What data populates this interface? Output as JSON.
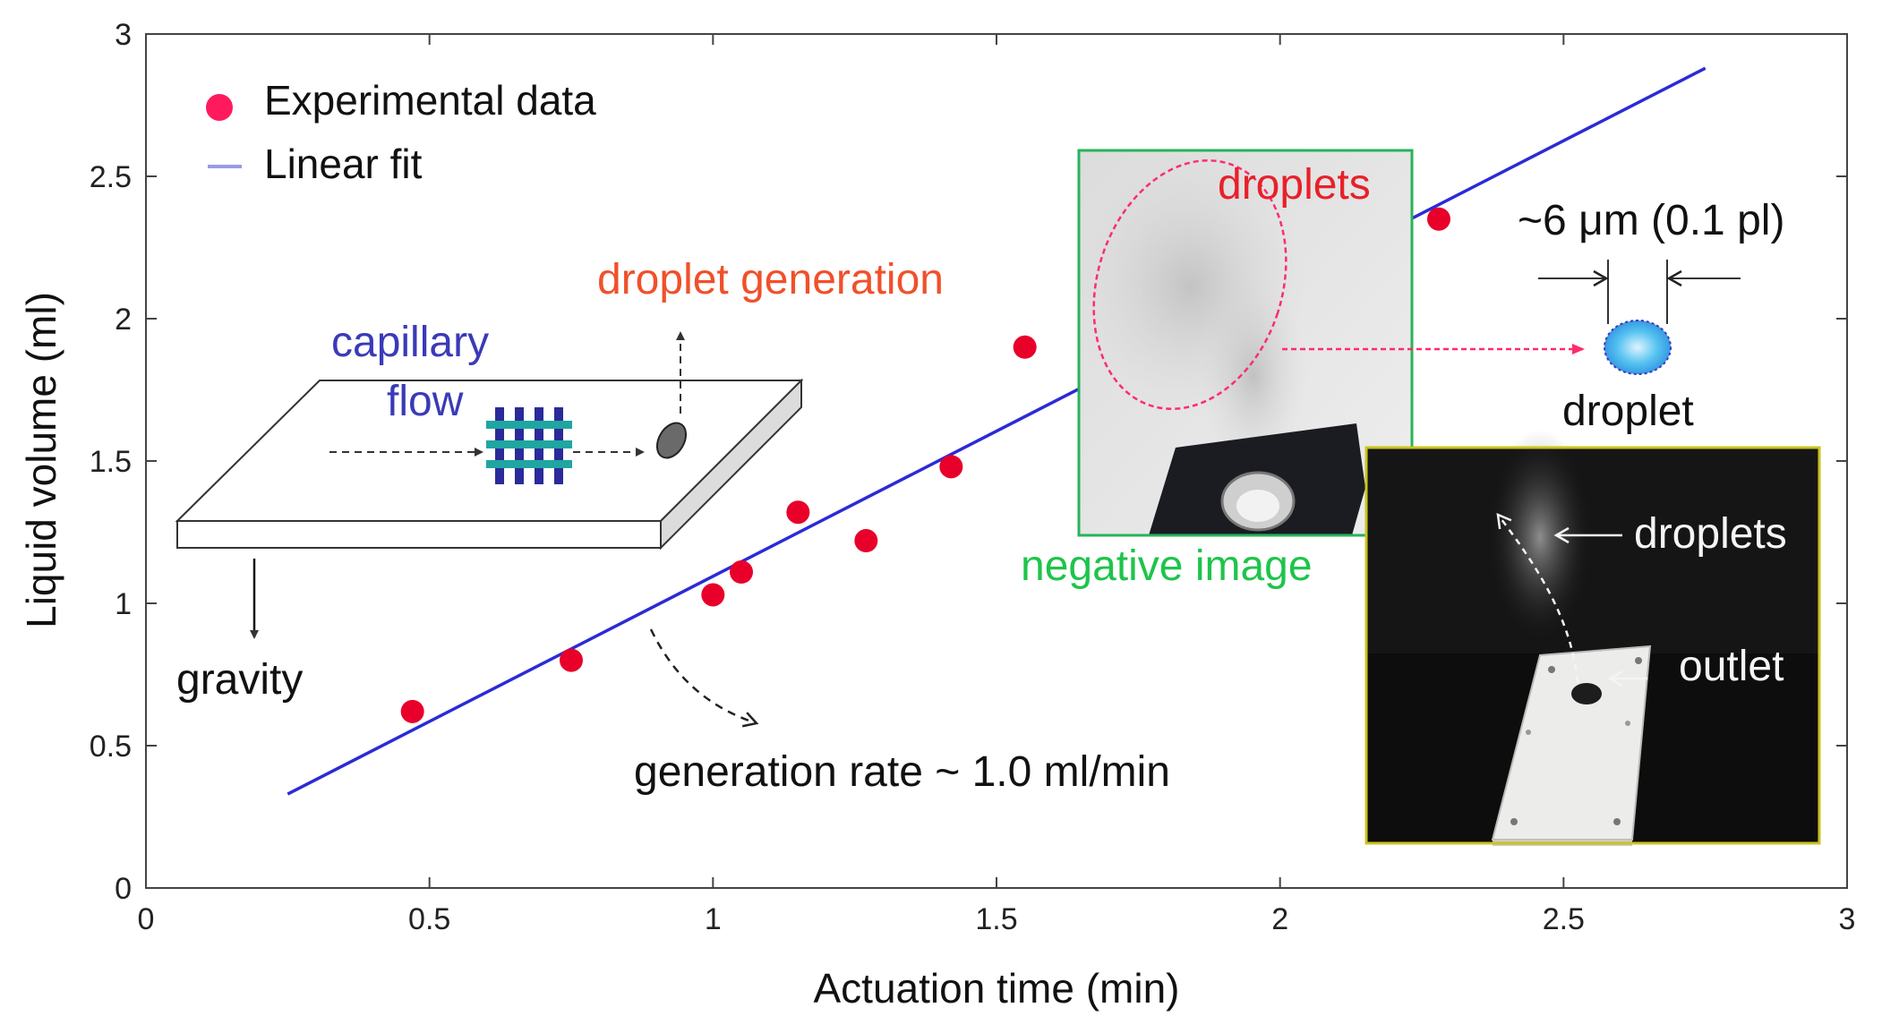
{
  "chart_data": {
    "type": "scatter",
    "title": "",
    "xlabel": "Actuation time (min)",
    "ylabel": "Liquid volume (ml)",
    "xlim": [
      0,
      3
    ],
    "ylim": [
      0,
      3
    ],
    "xticks": [
      "0",
      "0.5",
      "1",
      "1.5",
      "2",
      "2.5",
      "3"
    ],
    "yticks": [
      "0",
      "0.5",
      "1",
      "1.5",
      "2",
      "2.5",
      "3"
    ],
    "grid": false,
    "legend_position": "top-left",
    "series": [
      {
        "name": "Experimental data",
        "kind": "scatter",
        "color": "#e8002a",
        "x": [
          0.47,
          0.75,
          1.0,
          1.05,
          1.15,
          1.27,
          1.42,
          1.55,
          2.28
        ],
        "y": [
          0.62,
          0.8,
          1.03,
          1.11,
          1.32,
          1.22,
          1.48,
          1.9,
          2.35
        ]
      },
      {
        "name": "Linear fit",
        "kind": "line",
        "color": "#2b2bd6",
        "x": [
          0.25,
          2.75
        ],
        "y": [
          0.33,
          2.88
        ]
      }
    ]
  },
  "annotations": {
    "capillary_flow_line1": "capillary",
    "capillary_flow_line2": "flow",
    "droplet_generation": "droplet generation",
    "gravity": "gravity",
    "generation_rate": "generation rate ~ 1.0 ml/min",
    "droplets_inset": "droplets",
    "negative_image": "negative image",
    "droplet_size": "~6 μm (0.1 pl)",
    "droplet": "droplet",
    "droplets_photo": "droplets",
    "outlet": "outlet"
  },
  "colors": {
    "blue_text": "#3a3ab8",
    "orange_text": "#f0502a",
    "red_text": "#e8202a",
    "green_text": "#1ec44a",
    "mesh_teal": "#1fa6a0",
    "mesh_navy": "#2a2a9a",
    "inset_green_border": "#27b35a",
    "inset_yellow_border": "#c9c41e"
  }
}
